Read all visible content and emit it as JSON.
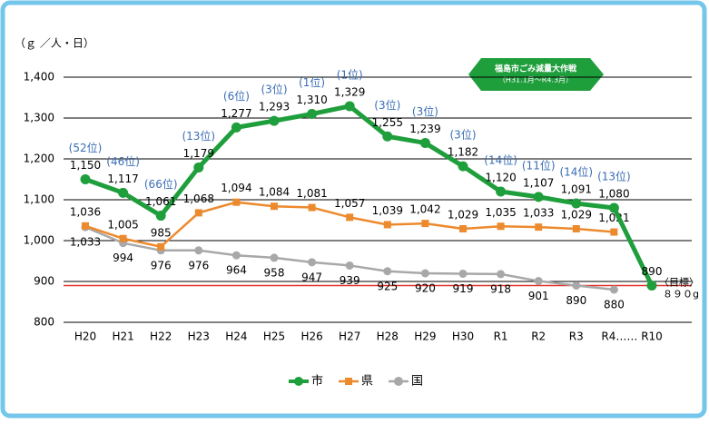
{
  "chart_data": {
    "type": "line",
    "y_unit_label": "（ｇ ／人・日）",
    "categories": [
      "H20",
      "H21",
      "H22",
      "H23",
      "H24",
      "H25",
      "H26",
      "H27",
      "H28",
      "H29",
      "H30",
      "R1",
      "R2",
      "R3",
      "R4……",
      "R10"
    ],
    "ylim": [
      800,
      1400
    ],
    "yticks": [
      800,
      900,
      {
        "value": 1000,
        "label": "1,000"
      },
      {
        "value": 1100,
        "label": "1,100"
      },
      {
        "value": 1200,
        "label": "1,200"
      },
      {
        "value": 1300,
        "label": "1,300"
      },
      {
        "value": 1400,
        "label": "1,400"
      }
    ],
    "grid": true,
    "series": [
      {
        "name": "市",
        "color": "#1f9e3c",
        "marker": "circle",
        "values": [
          1150,
          1117,
          1061,
          1179,
          1277,
          1293,
          1310,
          1329,
          1255,
          1239,
          1182,
          1120,
          1107,
          1091,
          1080,
          890
        ],
        "value_labels": [
          "1,150",
          "1,117",
          "1,061",
          "1,179",
          "1,277",
          "1,293",
          "1,310",
          "1,329",
          "1,255",
          "1,239",
          "1,182",
          "1,120",
          "1,107",
          "1,091",
          "1,080",
          "890"
        ],
        "rank_labels": [
          "(52位)",
          "(46位)",
          "(66位)",
          "(13位)",
          "(6位)",
          "(3位)",
          "(1位)",
          "(1位)",
          "(3位)",
          "(3位)",
          "(3位)",
          "(14位)",
          "(11位)",
          "(14位)",
          "(13位)",
          null
        ]
      },
      {
        "name": "県",
        "color": "#ec8a2e",
        "marker": "square",
        "values": [
          1036,
          1005,
          985,
          1068,
          1094,
          1084,
          1081,
          1057,
          1039,
          1042,
          1029,
          1035,
          1033,
          1029,
          1021,
          null
        ],
        "value_labels": [
          "1,036",
          "1,005",
          "985",
          "1,068",
          "1,094",
          "1,084",
          "1,081",
          "1,057",
          "1,039",
          "1,042",
          "1,029",
          "1,035",
          "1,033",
          "1,029",
          "1,021",
          null
        ]
      },
      {
        "name": "国",
        "color": "#a8a8a8",
        "marker": "circle",
        "values": [
          1033,
          994,
          976,
          976,
          964,
          958,
          947,
          939,
          925,
          920,
          919,
          918,
          901,
          890,
          880,
          null
        ],
        "value_labels": [
          "1,033",
          "994",
          "976",
          "976",
          "964",
          "958",
          "947",
          "939",
          "925",
          "920",
          "919",
          "918",
          "901",
          "890",
          "880",
          null
        ]
      }
    ],
    "target": {
      "value": 890,
      "color": "#e0322a",
      "label": "〈目標〉",
      "sublabel": "８９０g"
    },
    "banner": {
      "title": "福島市ごみ減量大作戦",
      "subtitle": "（H31.1月～R4.3月）"
    }
  }
}
